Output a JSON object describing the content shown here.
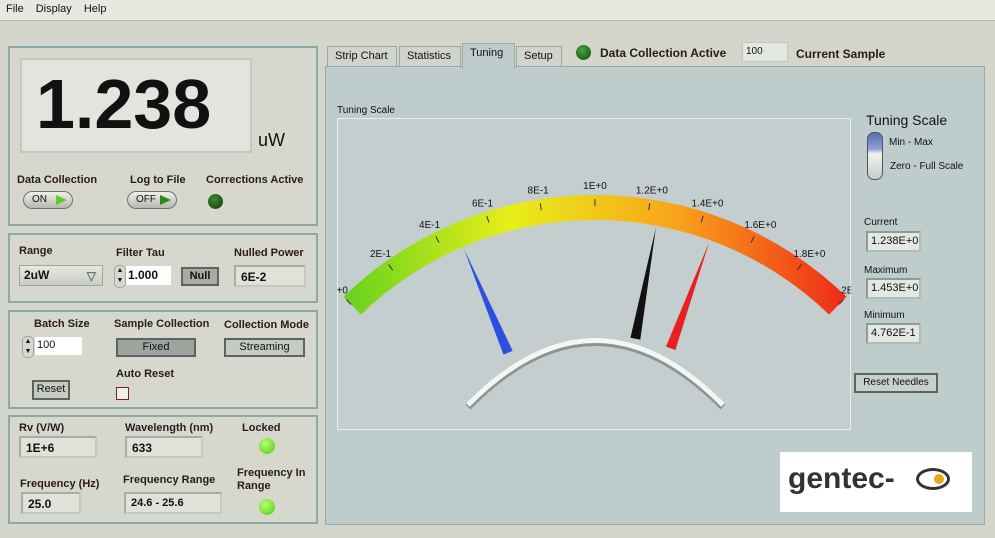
{
  "menu": [
    "File",
    "Display",
    "Help"
  ],
  "reading": {
    "value": "1.238",
    "unit": "uW"
  },
  "panel1": {
    "data_collection": "Data Collection",
    "data_collection_state": "ON",
    "log_to_file": "Log to File",
    "log_to_file_state": "OFF",
    "corrections_active": "Corrections Active"
  },
  "panel2": {
    "range_label": "Range",
    "range_value": "2uW",
    "filter_tau_label": "Filter Tau",
    "filter_tau_value": "1.000",
    "null_button": "Null",
    "nulled_power_label": "Nulled Power",
    "nulled_power_value": "6E-2"
  },
  "panel3": {
    "batch_size_label": "Batch Size",
    "batch_size_value": "100",
    "reset_button": "Reset",
    "sample_collection_label": "Sample Collection",
    "sample_collection_value": "Fixed",
    "collection_mode_label": "Collection Mode",
    "collection_mode_value": "Streaming",
    "auto_reset_label": "Auto Reset",
    "auto_reset_checked": false
  },
  "panel4": {
    "rv_label": "Rv (V/W)",
    "rv_value": "1E+6",
    "wavelength_label": "Wavelength (nm)",
    "wavelength_value": "633",
    "locked_label": "Locked",
    "frequency_label": "Frequency (Hz)",
    "frequency_value": "25.0",
    "frequency_range_label": "Frequency Range",
    "frequency_range_value": "24.6 - 25.6",
    "frequency_in_range_label": "Frequency In Range"
  },
  "tabs": [
    {
      "label": "Strip Chart"
    },
    {
      "label": "Statistics"
    },
    {
      "label": "Tuning",
      "active": true
    },
    {
      "label": "Setup"
    }
  ],
  "status": {
    "data_collection_active": "Data Collection Active",
    "current_sample_value": "100",
    "current_sample_label": "Current Sample"
  },
  "tuning": {
    "gauge_title": "Tuning Scale",
    "scale_labels": [
      "+0",
      "2E-1",
      "4E-1",
      "6E-1",
      "8E-1",
      "1E+0",
      "1.2E+0",
      "1.4E+0",
      "1.6E+0",
      "1.8E+0",
      "2E"
    ],
    "scale_min": 0,
    "scale_max": 2,
    "needles": {
      "minimum": 0.4762,
      "current": 1.238,
      "maximum": 1.453
    },
    "colors": {
      "minimum": "#2b4fe0",
      "current": "#111111",
      "maximum": "#e82020",
      "band": [
        "#66d21e",
        "#e8ee1a",
        "#f9a21a",
        "#ee2a18"
      ]
    },
    "scale_selector_title": "Tuning Scale",
    "scale_options": [
      "Min - Max",
      "Zero - Full Scale"
    ],
    "scale_selected": "Min - Max",
    "current_label": "Current",
    "current_value": "1.238E+0",
    "maximum_label": "Maximum",
    "maximum_value": "1.453E+0",
    "minimum_label": "Minimum",
    "minimum_value": "4.762E-1",
    "reset_needles": "Reset Needles"
  },
  "logo": "gentec-eo"
}
